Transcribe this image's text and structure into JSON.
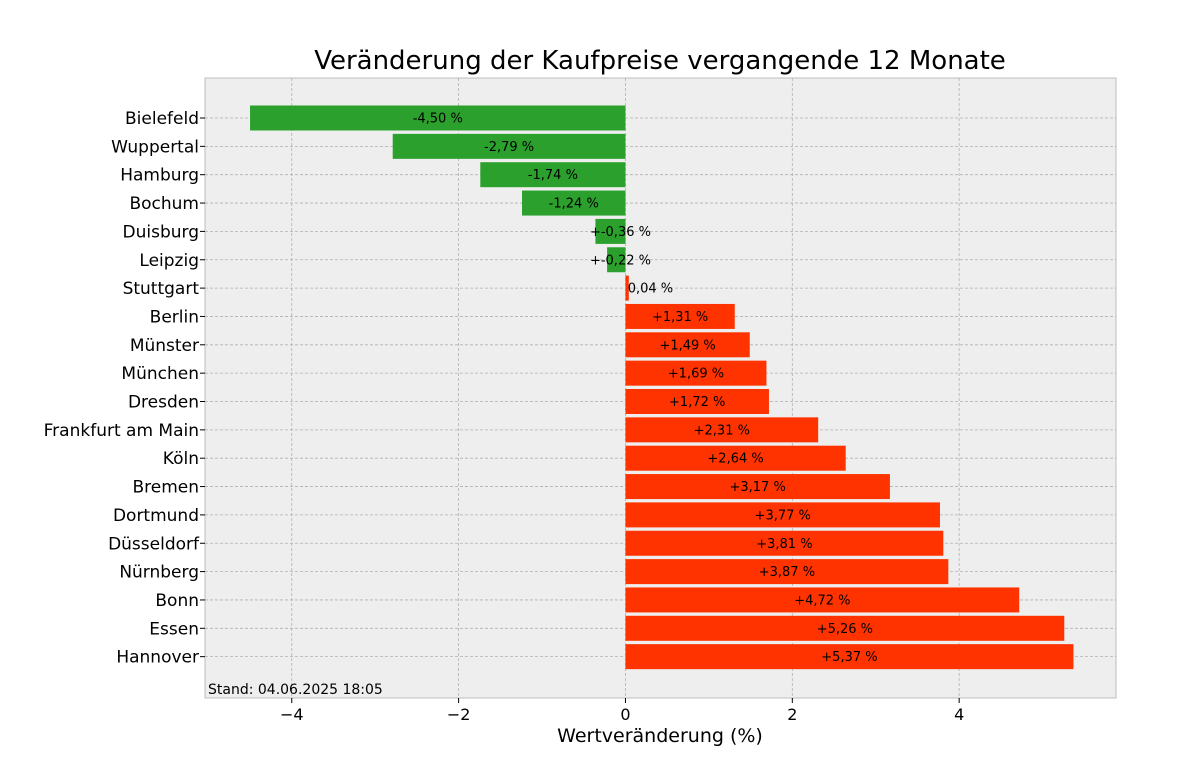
{
  "chart_data": {
    "type": "bar",
    "orientation": "horizontal",
    "title": "Veränderung der Kaufpreise vergangende 12 Monate",
    "xlabel": "Wertveränderung (%)",
    "ylabel": "",
    "xlim": [
      -5.04,
      5.88
    ],
    "xticks": [
      -4,
      -2,
      0,
      2,
      4
    ],
    "xtick_labels": [
      "−4",
      "−2",
      "0",
      "2",
      "4"
    ],
    "grid": true,
    "footnote": "Stand: 04.06.2025 18:05",
    "colors": {
      "negative": "#2ca02c",
      "positive": "#ff3300",
      "background": "#eeeeee"
    },
    "categories": [
      "Bielefeld",
      "Wuppertal",
      "Hamburg",
      "Bochum",
      "Duisburg",
      "Leipzig",
      "Stuttgart",
      "Berlin",
      "Münster",
      "München",
      "Dresden",
      "Frankfurt am Main",
      "Köln",
      "Bremen",
      "Dortmund",
      "Düsseldorf",
      "Nürnberg",
      "Bonn",
      "Essen",
      "Hannover"
    ],
    "values": [
      -4.5,
      -2.79,
      -1.74,
      -1.24,
      -0.36,
      -0.22,
      0.04,
      1.31,
      1.49,
      1.69,
      1.72,
      2.31,
      2.64,
      3.17,
      3.77,
      3.81,
      3.87,
      4.72,
      5.26,
      5.37
    ],
    "value_labels": [
      "-4,50 %",
      "-2,79 %",
      "-1,74 %",
      "-1,24 %",
      "+-0,36 %",
      "+-0,22 %",
      "0,04 %",
      "+1,31 %",
      "+1,49 %",
      "+1,69 %",
      "+1,72 %",
      "+2,31 %",
      "+2,64 %",
      "+3,17 %",
      "+3,77 %",
      "+3,81 %",
      "+3,87 %",
      "+4,72 %",
      "+5,26 %",
      "+5,37 %"
    ]
  }
}
